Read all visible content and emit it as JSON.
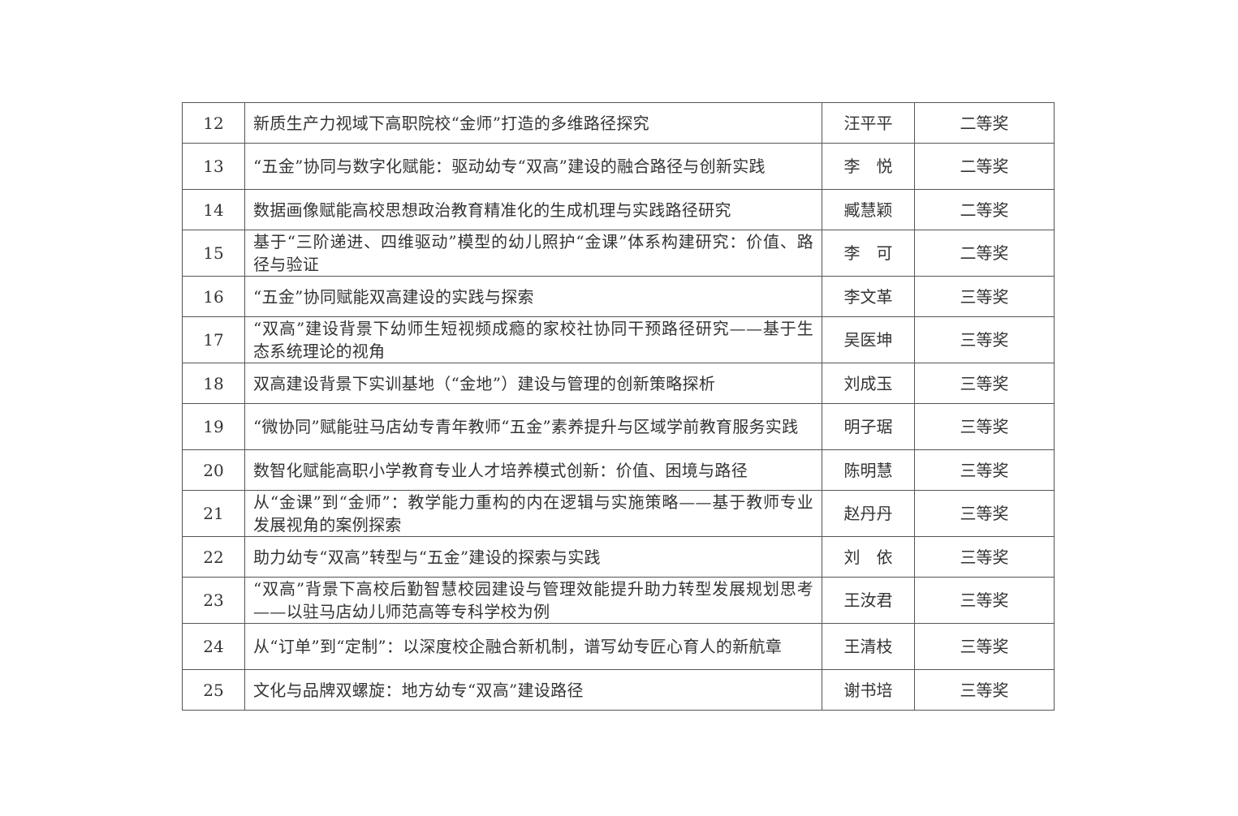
{
  "rows": [
    {
      "no": "12",
      "title": "新质生产力视域下高职院校“金师”打造的多维路径探究",
      "name": "汪平平",
      "award": "二等奖"
    },
    {
      "no": "13",
      "title": "“五金”协同与数字化赋能：驱动幼专“双高”建设的融合路径与创新实践",
      "name": "李　悦",
      "award": "二等奖"
    },
    {
      "no": "14",
      "title": "数据画像赋能高校思想政治教育精准化的生成机理与实践路径研究",
      "name": "臧慧颖",
      "award": "二等奖"
    },
    {
      "no": "15",
      "title": "基于“三阶递进、四维驱动”模型的幼儿照护“金课”体系构建研究：价值、路径与验证",
      "name": "李　可",
      "award": "二等奖"
    },
    {
      "no": "16",
      "title": "“五金”协同赋能双高建设的实践与探索",
      "name": "李文革",
      "award": "三等奖"
    },
    {
      "no": "17",
      "title": "“双高”建设背景下幼师生短视频成瘾的家校社协同干预路径研究——基于生态系统理论的视角",
      "name": "吴医坤",
      "award": "三等奖"
    },
    {
      "no": "18",
      "title": "双高建设背景下实训基地（“金地”）建设与管理的创新策略探析",
      "name": "刘成玉",
      "award": "三等奖"
    },
    {
      "no": "19",
      "title": "“微协同”赋能驻马店幼专青年教师“五金”素养提升与区域学前教育服务实践",
      "name": "明子琚",
      "award": "三等奖"
    },
    {
      "no": "20",
      "title": "数智化赋能高职小学教育专业人才培养模式创新：价值、困境与路径",
      "name": "陈明慧",
      "award": "三等奖"
    },
    {
      "no": "21",
      "title": "从“金课”到“金师”：教学能力重构的内在逻辑与实施策略——基于教师专业发展视角的案例探索",
      "name": "赵丹丹",
      "award": "三等奖"
    },
    {
      "no": "22",
      "title": "助力幼专“双高”转型与“五金”建设的探索与实践",
      "name": "刘　依",
      "award": "三等奖"
    },
    {
      "no": "23",
      "title": "“双高”背景下高校后勤智慧校园建设与管理效能提升助力转型发展规划思考——以驻马店幼儿师范高等专科学校为例",
      "name": "王汝君",
      "award": "三等奖"
    },
    {
      "no": "24",
      "title": "从“订单”到“定制”：以深度校企融合新机制，谱写幼专匠心育人的新航章",
      "name": "王清枝",
      "award": "三等奖"
    },
    {
      "no": "25",
      "title": "文化与品牌双螺旋：地方幼专“双高”建设路径",
      "name": "谢书培",
      "award": "三等奖"
    }
  ]
}
